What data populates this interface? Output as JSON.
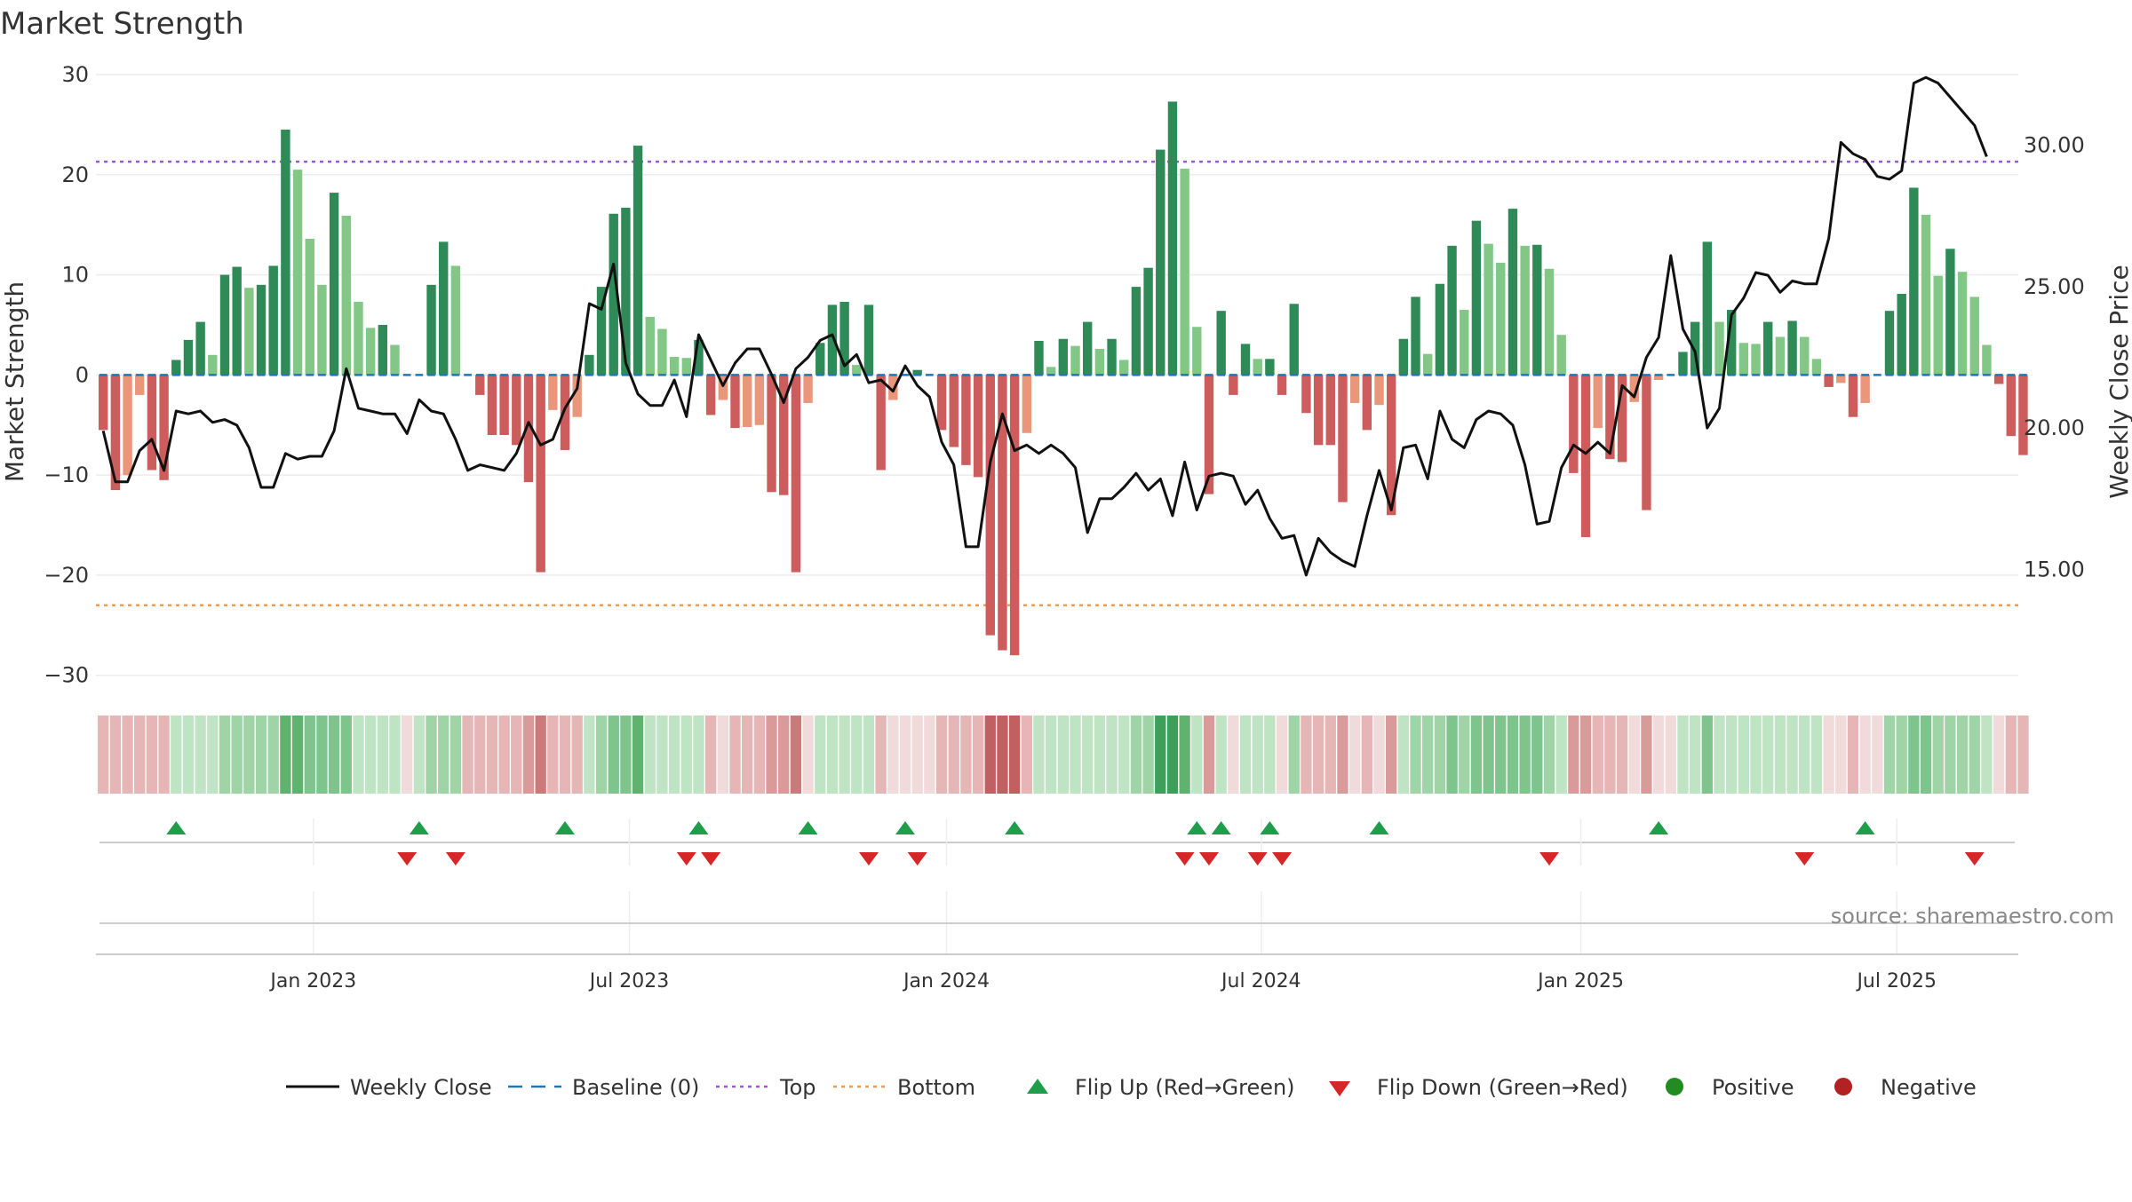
{
  "chart_data": {
    "type": "bar",
    "title": "Market Strength",
    "ylabel": "Market Strength",
    "ylabel_right": "Weekly Close Price",
    "ylim": [
      -31,
      30
    ],
    "ylim_right": [
      10.9,
      32.5
    ],
    "yticks": [
      30,
      20,
      10,
      0,
      -10,
      -20,
      -30
    ],
    "yticklabels": [
      "30",
      "20",
      "10",
      "0",
      "−10",
      "−20",
      "−30"
    ],
    "yticks_right": [
      30,
      25,
      20,
      15
    ],
    "yticklabels_right": [
      "30.00",
      "25.00",
      "20.00",
      "15.00"
    ],
    "x_start": "2022-09-04",
    "x_end": "2025-09-21",
    "x_domain_weeks": [
      -0.6,
      157.6
    ],
    "xtick_weeks": [
      17.3,
      43.3,
      69.4,
      95.3,
      121.6,
      147.6
    ],
    "xticklabels": [
      "Jan 2023",
      "Jul 2023",
      "Jan 2024",
      "Jul 2024",
      "Jan 2025",
      "Jul 2025"
    ],
    "top_threshold": 21.3,
    "bottom_threshold": -23.0,
    "grid": true,
    "legend_position": "bottom-center",
    "source_note": "source: sharemaestro.com",
    "colors": {
      "pos_strong": "#2e8b57",
      "pos_weak": "#82c785",
      "neg_strong": "#cd5c5c",
      "neg_weak": "#e9967a",
      "close_line": "#111111",
      "baseline": "#1f77b4",
      "top": "#9b59d0",
      "bottom": "#f39c4f",
      "flip_up": "#1e9e4a",
      "flip_down": "#d62728",
      "positive_dot": "#228b22",
      "negative_dot": "#b22222"
    },
    "strength": [
      -5.5,
      -11.5,
      -10,
      -2,
      -9.5,
      -10.5,
      1.5,
      3.5,
      5.3,
      2,
      10,
      10.8,
      8.7,
      9,
      10.9,
      24.5,
      20.5,
      13.6,
      9,
      18.2,
      15.9,
      7.3,
      4.7,
      5,
      3,
      0,
      0,
      9,
      13.3,
      10.9,
      0,
      -2,
      -6,
      -6,
      -7,
      -10.7,
      -19.7,
      -3.5,
      -7.5,
      -4.2,
      2,
      8.8,
      16.1,
      16.7,
      22.9,
      5.8,
      4.6,
      1.8,
      1.7,
      3.5,
      -4,
      -2.5,
      -5.3,
      -5.2,
      -5,
      -11.7,
      -12,
      -19.7,
      -2.8,
      3.2,
      7,
      7.3,
      1,
      7,
      -9.5,
      -2.5,
      0,
      0.5,
      0,
      -5.5,
      -7.2,
      -9,
      -10.2,
      -26,
      -27.5,
      -28,
      -5.8,
      3.4,
      0.8,
      3.6,
      2.9,
      5.3,
      2.6,
      3.6,
      1.5,
      8.8,
      10.7,
      22.5,
      27.3,
      20.6,
      4.8,
      -11.9,
      6.4,
      -2,
      3.1,
      1.6,
      1.6,
      -2,
      7.1,
      -3.8,
      -7,
      -7,
      -12.7,
      -2.8,
      -5.5,
      -3,
      -14,
      3.6,
      7.8,
      2.1,
      9.1,
      12.9,
      6.5,
      15.4,
      13.1,
      11.2,
      16.6,
      12.9,
      13,
      10.6,
      4,
      -9.8,
      -16.2,
      -5.3,
      -8.4,
      -8.7,
      -2.7,
      -13.5,
      -0.5,
      0,
      2.3,
      5.3,
      13.3,
      5.3,
      6.5,
      3.2,
      3.1,
      5.3,
      3.8,
      5.4,
      3.8,
      1.6,
      -1.2,
      -0.8,
      -4.2,
      -2.8,
      0,
      6.4,
      8.1,
      18.7,
      16,
      9.9,
      12.6,
      10.3,
      7.8,
      3,
      -0.9,
      -6.1,
      -8
    ],
    "close": [
      19.9,
      18.1,
      18.1,
      19.2,
      19.6,
      18.5,
      20.6,
      20.5,
      20.6,
      20.2,
      20.3,
      20.1,
      19.3,
      17.9,
      17.9,
      19.1,
      18.9,
      19,
      19,
      19.9,
      22.1,
      20.7,
      20.6,
      20.5,
      20.5,
      19.8,
      21,
      20.6,
      20.5,
      19.6,
      18.5,
      18.7,
      18.6,
      18.5,
      19.1,
      20.2,
      19.4,
      19.6,
      20.7,
      21.4,
      24.4,
      24.2,
      25.8,
      22.3,
      21.2,
      20.8,
      20.8,
      21.7,
      20.4,
      23.3,
      22.4,
      21.5,
      22.3,
      22.8,
      22.8,
      21.9,
      20.9,
      22.1,
      22.5,
      23.1,
      23.3,
      22.2,
      22.6,
      21.6,
      21.7,
      21.3,
      22.2,
      21.5,
      21.1,
      19.5,
      18.7,
      15.8,
      15.8,
      18.8,
      20.5,
      19.2,
      19.4,
      19.1,
      19.4,
      19.1,
      18.6,
      16.3,
      17.5,
      17.5,
      17.9,
      18.4,
      17.8,
      18.2,
      16.9,
      18.8,
      17.1,
      18.3,
      18.4,
      18.3,
      17.3,
      17.8,
      16.8,
      16.1,
      16.2,
      14.8,
      16.1,
      15.6,
      15.3,
      15.1,
      16.9,
      18.5,
      17.1,
      19.3,
      19.4,
      18.2,
      20.6,
      19.6,
      19.3,
      20.3,
      20.6,
      20.5,
      20.1,
      18.7,
      16.6,
      16.7,
      18.6,
      19.4,
      19.1,
      19.5,
      19.1,
      21.5,
      21.1,
      22.5,
      23.2,
      26.1,
      23.5,
      22.7,
      20,
      20.7,
      24,
      24.6,
      25.5,
      25.4,
      24.8,
      25.2,
      25.1,
      25.1,
      26.7,
      30.1,
      29.7,
      29.5,
      28.9,
      28.8,
      29.1,
      32.2,
      32.4,
      32.2,
      31.7,
      31.2,
      30.7,
      29.6
    ],
    "gradient_colors": [
      "#e6b5b5",
      "#e6b5b5",
      "#e6b5b5",
      "#e6b5b5",
      "#e6b5b5",
      "#e6b5b5",
      "#bfe4c4",
      "#bfe4c4",
      "#bfe4c4",
      "#bfe4c4",
      "#9fd4a7",
      "#9fd4a7",
      "#9fd4a7",
      "#9fd4a7",
      "#9fd4a7",
      "#5fb36f",
      "#5fb36f",
      "#7fc48d",
      "#7fc48d",
      "#7fc48d",
      "#7fc48d",
      "#bfe4c4",
      "#bfe4c4",
      "#bfe4c4",
      "#bfe4c4",
      "#f1dada",
      "#bfe4c4",
      "#9fd4a7",
      "#9fd4a7",
      "#9fd4a7",
      "#e6b5b5",
      "#e6b5b5",
      "#e6b5b5",
      "#e6b5b5",
      "#e6b5b5",
      "#d99a9a",
      "#c97a7a",
      "#e6b5b5",
      "#e6b5b5",
      "#e6b5b5",
      "#bfe4c4",
      "#9fd4a7",
      "#7fc48d",
      "#7fc48d",
      "#5fb36f",
      "#bfe4c4",
      "#bfe4c4",
      "#bfe4c4",
      "#bfe4c4",
      "#bfe4c4",
      "#e6b5b5",
      "#f1dada",
      "#e6b5b5",
      "#e6b5b5",
      "#e6b5b5",
      "#d99a9a",
      "#d99a9a",
      "#c97a7a",
      "#f1dada",
      "#bfe4c4",
      "#bfe4c4",
      "#bfe4c4",
      "#bfe4c4",
      "#bfe4c4",
      "#e6b5b5",
      "#f1dada",
      "#f1dada",
      "#f1dada",
      "#f1dada",
      "#e6b5b5",
      "#e6b5b5",
      "#e6b5b5",
      "#e6b5b5",
      "#c06060",
      "#c06060",
      "#c06060",
      "#e6b5b5",
      "#bfe4c4",
      "#bfe4c4",
      "#bfe4c4",
      "#bfe4c4",
      "#bfe4c4",
      "#bfe4c4",
      "#bfe4c4",
      "#bfe4c4",
      "#9fd4a7",
      "#9fd4a7",
      "#3f9f5a",
      "#3f9f5a",
      "#5fb36f",
      "#bfe4c4",
      "#d99a9a",
      "#bfe4c4",
      "#f1dada",
      "#bfe4c4",
      "#bfe4c4",
      "#bfe4c4",
      "#f1dada",
      "#9fd4a7",
      "#e6b5b5",
      "#e6b5b5",
      "#e6b5b5",
      "#d99a9a",
      "#f1dada",
      "#e6b5b5",
      "#f1dada",
      "#d99a9a",
      "#bfe4c4",
      "#9fd4a7",
      "#9fd4a7",
      "#9fd4a7",
      "#7fc48d",
      "#9fd4a7",
      "#7fc48d",
      "#7fc48d",
      "#7fc48d",
      "#7fc48d",
      "#7fc48d",
      "#7fc48d",
      "#9fd4a7",
      "#bfe4c4",
      "#d99a9a",
      "#d99a9a",
      "#e6b5b5",
      "#e6b5b5",
      "#e6b5b5",
      "#f1dada",
      "#d99a9a",
      "#f1dada",
      "#f1dada",
      "#bfe4c4",
      "#bfe4c4",
      "#7fc48d",
      "#bfe4c4",
      "#bfe4c4",
      "#bfe4c4",
      "#bfe4c4",
      "#bfe4c4",
      "#bfe4c4",
      "#bfe4c4",
      "#bfe4c4",
      "#bfe4c4",
      "#f1dada",
      "#f1dada",
      "#e6b5b5",
      "#f1dada",
      "#f1dada",
      "#9fd4a7",
      "#9fd4a7",
      "#7fc48d",
      "#7fc48d",
      "#9fd4a7",
      "#9fd4a7",
      "#9fd4a7",
      "#9fd4a7",
      "#bfe4c4",
      "#f1dada",
      "#e6b5b5",
      "#e6b5b5"
    ],
    "flip_up_weeks": [
      6,
      26,
      38,
      49,
      58,
      66,
      75,
      90,
      92,
      96,
      105,
      128,
      145
    ],
    "flip_down_weeks": [
      25,
      29,
      48,
      50,
      63,
      67,
      89,
      91,
      95,
      97,
      119,
      140,
      154
    ],
    "legend": [
      {
        "label": "Weekly Close",
        "kind": "line"
      },
      {
        "label": "Baseline (0)",
        "kind": "dash"
      },
      {
        "label": "Top",
        "kind": "dot-top"
      },
      {
        "label": "Bottom",
        "kind": "dot-bottom"
      },
      {
        "label": "Flip Up (Red→Green)",
        "kind": "tri-up"
      },
      {
        "label": "Flip Down (Green→Red)",
        "kind": "tri-down"
      },
      {
        "label": "Positive",
        "kind": "circle-pos"
      },
      {
        "label": "Negative",
        "kind": "circle-neg"
      }
    ]
  }
}
